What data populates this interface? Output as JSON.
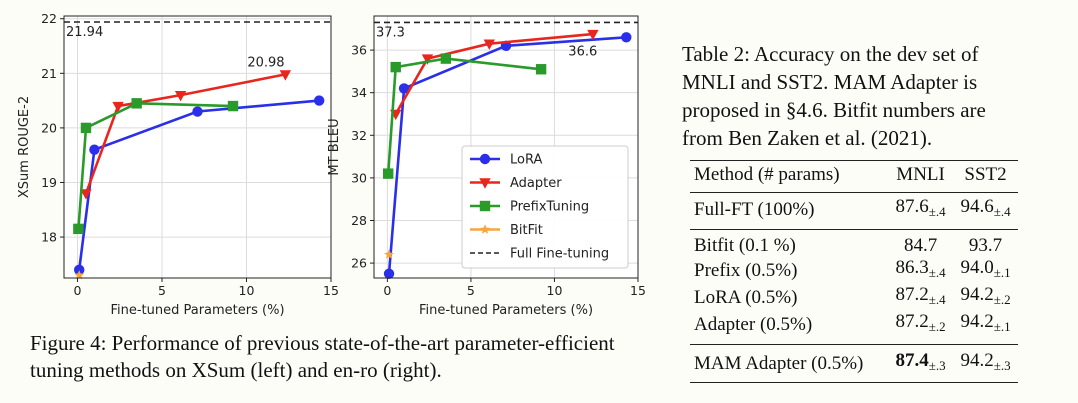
{
  "figure": {
    "caption": "Figure 4:  Performance of previous state-of-the-art parameter-efficient tuning methods on XSum (left) and en-ro (right)."
  },
  "chart_data": [
    {
      "type": "line",
      "xlabel": "Fine-tuned Parameters (%)",
      "ylabel": "XSum ROUGE-2",
      "xlim": [
        -0.8,
        15
      ],
      "ylim": [
        17.25,
        22.05
      ],
      "xticks": [
        0,
        5,
        10,
        15
      ],
      "yticks": [
        18,
        19,
        20,
        21,
        22
      ],
      "grid": true,
      "series": [
        {
          "name": "LoRA",
          "color": "#2a2fe8",
          "marker": "circle",
          "x": [
            0.1,
            1.0,
            7.1,
            14.3
          ],
          "y": [
            17.4,
            19.6,
            20.3,
            20.5
          ]
        },
        {
          "name": "Adapter",
          "color": "#e8261d",
          "marker": "triangle-down",
          "x": [
            0.5,
            2.4,
            6.1,
            12.3
          ],
          "y": [
            18.8,
            20.4,
            20.6,
            20.98
          ]
        },
        {
          "name": "PrefixTuning",
          "color": "#2a9a2a",
          "marker": "square",
          "x": [
            0.05,
            0.5,
            3.5,
            9.2
          ],
          "y": [
            18.15,
            20.0,
            20.45,
            20.4
          ]
        },
        {
          "name": "BitFit",
          "color": "#f5a640",
          "marker": "star",
          "x": [
            0.1
          ],
          "y": [
            17.3
          ]
        }
      ],
      "reference": {
        "name": "Full Fine-tuning",
        "value": 21.94,
        "label": "21.94"
      },
      "annotations": [
        {
          "text": "20.98",
          "x": 12.3,
          "y": 20.98
        }
      ]
    },
    {
      "type": "line",
      "xlabel": "Fine-tuned Parameters (%)",
      "ylabel": "MT BLEU",
      "xlim": [
        -0.8,
        15
      ],
      "ylim": [
        25.3,
        37.6
      ],
      "xticks": [
        0,
        5,
        10,
        15
      ],
      "yticks": [
        26,
        28,
        30,
        32,
        34,
        36
      ],
      "grid": true,
      "legend": "lower-right",
      "series": [
        {
          "name": "LoRA",
          "color": "#2a2fe8",
          "marker": "circle",
          "x": [
            0.1,
            1.0,
            7.1,
            14.3
          ],
          "y": [
            25.5,
            34.2,
            36.2,
            36.6
          ]
        },
        {
          "name": "Adapter",
          "color": "#e8261d",
          "marker": "triangle-down",
          "x": [
            0.5,
            2.4,
            6.1,
            12.3
          ],
          "y": [
            33.0,
            35.6,
            36.3,
            36.75
          ]
        },
        {
          "name": "PrefixTuning",
          "color": "#2a9a2a",
          "marker": "square",
          "x": [
            0.05,
            0.5,
            3.5,
            9.2
          ],
          "y": [
            30.2,
            35.2,
            35.6,
            35.1
          ]
        },
        {
          "name": "BitFit",
          "color": "#f5a640",
          "marker": "star",
          "x": [
            0.1
          ],
          "y": [
            26.4
          ]
        }
      ],
      "reference": {
        "name": "Full Fine-tuning",
        "value": 37.3,
        "label": "37.3"
      },
      "annotations": [
        {
          "text": "36.6",
          "x": 14.3,
          "y": 36.6
        }
      ]
    }
  ],
  "table": {
    "caption_lines": [
      "Table 2:  Accuracy on the dev set of",
      "MNLI and SST2.  MAM Adapter is",
      "proposed in §4.6.  Bitfit numbers are",
      "from Ben Zaken et al. (2021)."
    ],
    "headers": [
      "Method (# params)",
      "MNLI",
      "SST2"
    ],
    "rows": [
      {
        "method": "Full-FT (100%)",
        "mnli": "87.6",
        "mnli_pm": "±.4",
        "sst2": "94.6",
        "sst2_pm": "±.4"
      },
      {
        "method": "Bitfit (0.1 %)",
        "mnli": "84.7",
        "mnli_pm": "",
        "sst2": "93.7",
        "sst2_pm": ""
      },
      {
        "method": "Prefix (0.5%)",
        "mnli": "86.3",
        "mnli_pm": "±.4",
        "sst2": "94.0",
        "sst2_pm": "±.1"
      },
      {
        "method": "LoRA (0.5%)",
        "mnli": "87.2",
        "mnli_pm": "±.4",
        "sst2": "94.2",
        "sst2_pm": "±.2"
      },
      {
        "method": "Adapter (0.5%)",
        "mnli": "87.2",
        "mnli_pm": "±.2",
        "sst2": "94.2",
        "sst2_pm": "±.1"
      },
      {
        "method": "MAM Adapter (0.5%)",
        "mnli": "87.4",
        "mnli_pm": "±.3",
        "sst2": "94.2",
        "sst2_pm": "±.3"
      }
    ]
  }
}
